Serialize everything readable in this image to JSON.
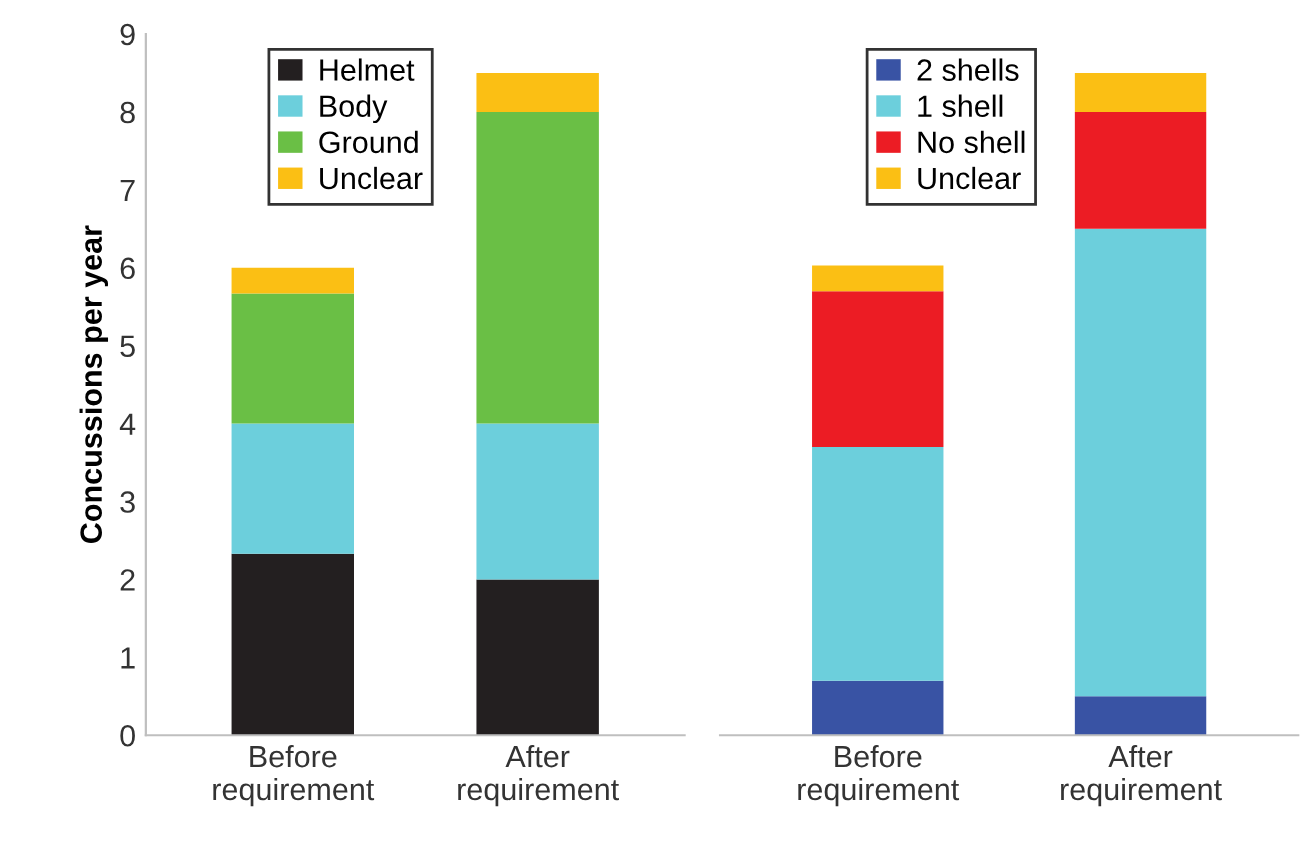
{
  "chart_data": [
    {
      "type": "bar",
      "stacked": true,
      "ylabel": "Concussions per year",
      "categories": [
        "Before\nrequirement",
        "After\nrequirement"
      ],
      "ylim": [
        0,
        9
      ],
      "yticks": [
        0,
        1,
        2,
        3,
        4,
        5,
        6,
        7,
        8,
        9
      ],
      "legend": "top",
      "grid": false,
      "series": [
        {
          "name": "Helmet",
          "color": "#231f20",
          "values": [
            2.33,
            2
          ]
        },
        {
          "name": "Body",
          "color": "#6ccfdc",
          "values": [
            1.67,
            2
          ]
        },
        {
          "name": "Ground",
          "color": "#6abf45",
          "values": [
            1.67,
            4
          ]
        },
        {
          "name": "Unclear",
          "color": "#fbbf14",
          "values": [
            0.33,
            0.5
          ]
        }
      ]
    },
    {
      "type": "bar",
      "stacked": true,
      "categories": [
        "Before\nrequirement",
        "After\nrequirement"
      ],
      "ylim": [
        0,
        9
      ],
      "yticks": [
        0,
        1,
        2,
        3,
        4,
        5,
        6,
        7,
        8,
        9
      ],
      "tick_labels": "x",
      "legend": "top",
      "grid": false,
      "series": [
        {
          "name": "2 shells",
          "color": "#3953a4",
          "values": [
            0.7,
            0.5
          ]
        },
        {
          "name": "1 shell",
          "color": "#6ccfdc",
          "values": [
            3,
            6
          ]
        },
        {
          "name": "No shell",
          "color": "#ec1c24",
          "values": [
            2,
            1.5
          ]
        },
        {
          "name": "Unclear",
          "color": "#fbbf14",
          "values": [
            0.33,
            0.5
          ]
        }
      ]
    }
  ]
}
